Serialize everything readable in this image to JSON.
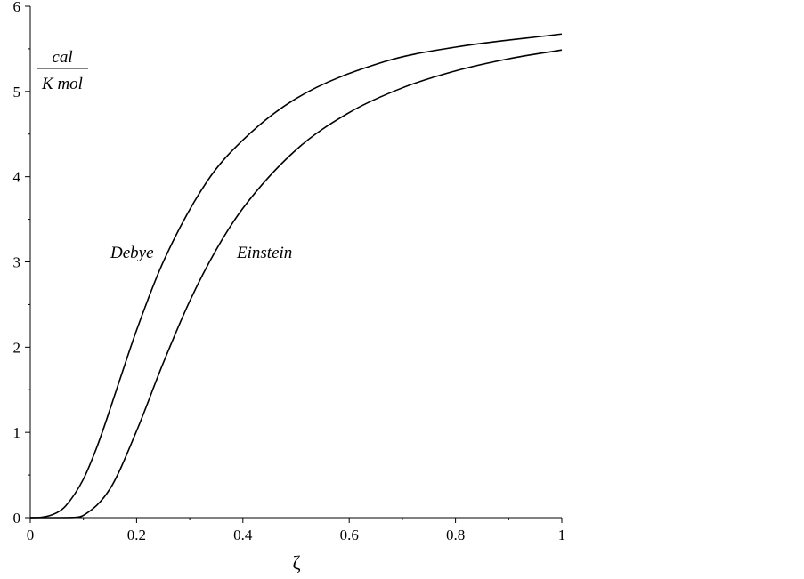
{
  "chart_data": {
    "type": "line",
    "title": "",
    "xlabel": "ζ",
    "ylabel": {
      "numerator": "cal",
      "denominator": "K mol"
    },
    "xlim": [
      0,
      1
    ],
    "ylim": [
      0,
      6
    ],
    "x_ticks": [
      0,
      0.2,
      0.4,
      0.6,
      0.8,
      1
    ],
    "x_tick_labels": [
      "0",
      "0.2",
      "0.4",
      "0.6",
      "0.8",
      "1"
    ],
    "y_ticks": [
      0,
      1,
      2,
      3,
      4,
      5,
      6
    ],
    "y_tick_labels": [
      "0",
      "1",
      "2",
      "3",
      "4",
      "5",
      "6"
    ],
    "grid": false,
    "line_color": "#000000",
    "series": [
      {
        "name": "Debye",
        "x": [
          0,
          0.02,
          0.05,
          0.0667,
          0.1,
          0.125,
          0.1429,
          0.1667,
          0.2,
          0.25,
          0.3333,
          0.4,
          0.5,
          0.6667,
          0.8,
          1
        ],
        "y": [
          0,
          0.004,
          0.058,
          0.138,
          0.452,
          0.822,
          1.138,
          1.585,
          2.199,
          2.998,
          3.951,
          4.43,
          4.917,
          5.35,
          5.52,
          5.674
        ]
      },
      {
        "name": "Einstein",
        "x": [
          0,
          0.05,
          0.08,
          0.1,
          0.15,
          0.2,
          0.25,
          0.3,
          0.35,
          0.4,
          0.5,
          0.6,
          0.7,
          0.8,
          0.9,
          1
        ],
        "y": [
          0,
          0,
          0.002,
          0.027,
          0.338,
          1.017,
          1.812,
          2.54,
          3.145,
          3.629,
          4.315,
          4.753,
          5.042,
          5.241,
          5.383,
          5.487
        ]
      }
    ]
  }
}
